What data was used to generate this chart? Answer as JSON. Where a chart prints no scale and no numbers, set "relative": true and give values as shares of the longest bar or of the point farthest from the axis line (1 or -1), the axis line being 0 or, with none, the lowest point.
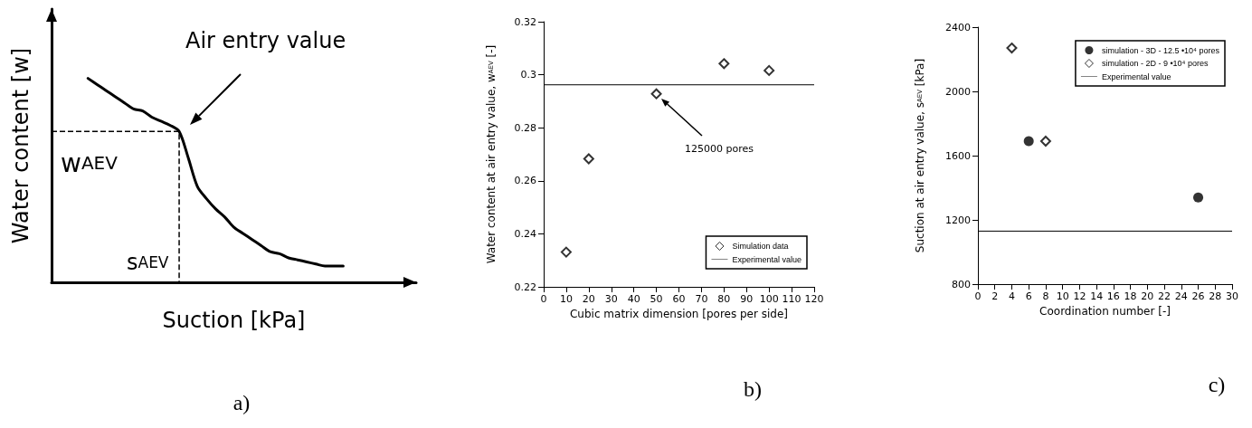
{
  "chart_data": [
    {
      "type": "line",
      "title": "a)",
      "xlabel": "Suction [kPa]",
      "ylabel": "Water content [w]",
      "relative": true,
      "legend": false,
      "grid": false,
      "marker": "none",
      "line_style": "solid",
      "categories": [
        null,
        null,
        null,
        null,
        null,
        null,
        null,
        null,
        null,
        null,
        null,
        null,
        null,
        null,
        null,
        null,
        null,
        null,
        null,
        null,
        null,
        null,
        null,
        null,
        null,
        null,
        null,
        null,
        null,
        null,
        null,
        null,
        null,
        null,
        null,
        null,
        null,
        null,
        null,
        null,
        null
      ],
      "series": [
        {
          "color": "#000000",
          "values": [
            null,
            null,
            null,
            null,
            1,
            0.97,
            0.94,
            0.91,
            0.88,
            0.85,
            0.84,
            0.81,
            0.79,
            0.77,
            0.74,
            0.61,
            0.47,
            0.41,
            0.36,
            0.32,
            0.27,
            0.24,
            0.21,
            0.18,
            0.15,
            0.14,
            0.12,
            0.11,
            0.1,
            0.09,
            0.08,
            0.08,
            0.08,
            null,
            null,
            null,
            null,
            null,
            null,
            null,
            null
          ]
        }
      ],
      "ref_lines": [
        {
          "axis": "y",
          "value": 0.74,
          "label": "w$_{AEV}$",
          "line_style": "dashed",
          "color": "#000000"
        }
      ],
      "annotations": [
        "s$_{AEV}$",
        "Air entry value"
      ]
    },
    {
      "type": "scatter",
      "title": "b)",
      "xlabel": "Cubic matrix dimension [pores per side]",
      "ylabel": "Water content at air entry value, w$_{AEV}$ [-]",
      "legend": "bottom right",
      "grid": false,
      "marker": "diamond",
      "x": [
        10,
        20,
        50,
        80,
        100
      ],
      "series": [
        {
          "name": "Simulation data",
          "color": "#000000",
          "values": [
            0.2331,
            0.2683,
            0.2928,
            0.3042,
            0.3016
          ]
        }
      ],
      "xlim": [
        0,
        120
      ],
      "xticks": [
        0,
        10,
        20,
        30,
        40,
        50,
        60,
        70,
        80,
        90,
        100,
        110,
        120
      ],
      "ylim": [
        0.22,
        0.32
      ],
      "yticks": [
        0.22,
        0.24,
        0.26,
        0.28,
        0.3,
        0.32
      ],
      "ref_lines": [
        {
          "axis": "y",
          "value": 0.2962,
          "label": "Experimental value",
          "color": "#000000"
        }
      ],
      "annotations": [
        "125000 pores"
      ]
    },
    {
      "type": "scatter",
      "title": "c)",
      "xlabel": "Coordination number [-]",
      "ylabel": "Suction at air entry value, s$_{AEV}$ [kPa]",
      "legend": "top right",
      "grid": false,
      "series": [
        {
          "name": "simulation - 3D - 12.5 •10⁴ pores",
          "color": "#000000",
          "x": [
            6,
            26
          ],
          "values": [
            1690,
            1340
          ],
          "marker": "circle"
        },
        {
          "name": "simulation - 2D - 9 •10⁴ pores",
          "color": "#000000",
          "x": [
            4,
            8
          ],
          "values": [
            2270,
            1690
          ],
          "marker": "diamond"
        }
      ],
      "xlim": [
        0,
        30
      ],
      "xticks": [
        0,
        2,
        4,
        6,
        8,
        10,
        12,
        14,
        16,
        18,
        20,
        22,
        24,
        26,
        28,
        30
      ],
      "ylim": [
        800,
        2400
      ],
      "yticks": [
        800,
        1200,
        1600,
        2000,
        2400
      ],
      "ref_lines": [
        {
          "axis": "y",
          "value": 1130,
          "label": "Experimental value",
          "color": "#000000"
        }
      ]
    }
  ]
}
